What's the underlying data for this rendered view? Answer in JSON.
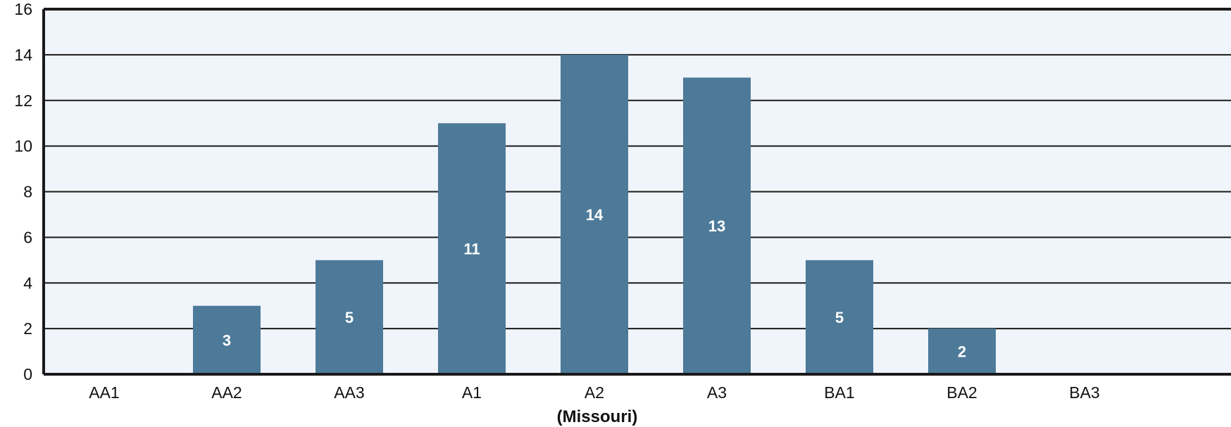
{
  "chart_data": {
    "type": "bar",
    "categories": [
      "AA1",
      "AA2",
      "AA3",
      "A1",
      "A2",
      "A3",
      "BA1",
      "BA2",
      "BA3"
    ],
    "values": [
      0,
      3,
      5,
      11,
      14,
      13,
      5,
      2,
      0
    ],
    "data_labels": [
      "",
      "3",
      "5",
      "11",
      "14",
      "13",
      "5",
      "2",
      ""
    ],
    "title": "",
    "xlabel": "(Missouri)",
    "ylabel": "",
    "ylim": [
      0,
      16
    ],
    "yticks": [
      0,
      2,
      4,
      6,
      8,
      10,
      12,
      14,
      16
    ],
    "grid": true,
    "legend": "none",
    "colors": {
      "bar": "#4d7a99",
      "plot_background": "#f0f4fb",
      "gridline": "#1a1a1a",
      "frame": "#1a1a1a"
    }
  }
}
